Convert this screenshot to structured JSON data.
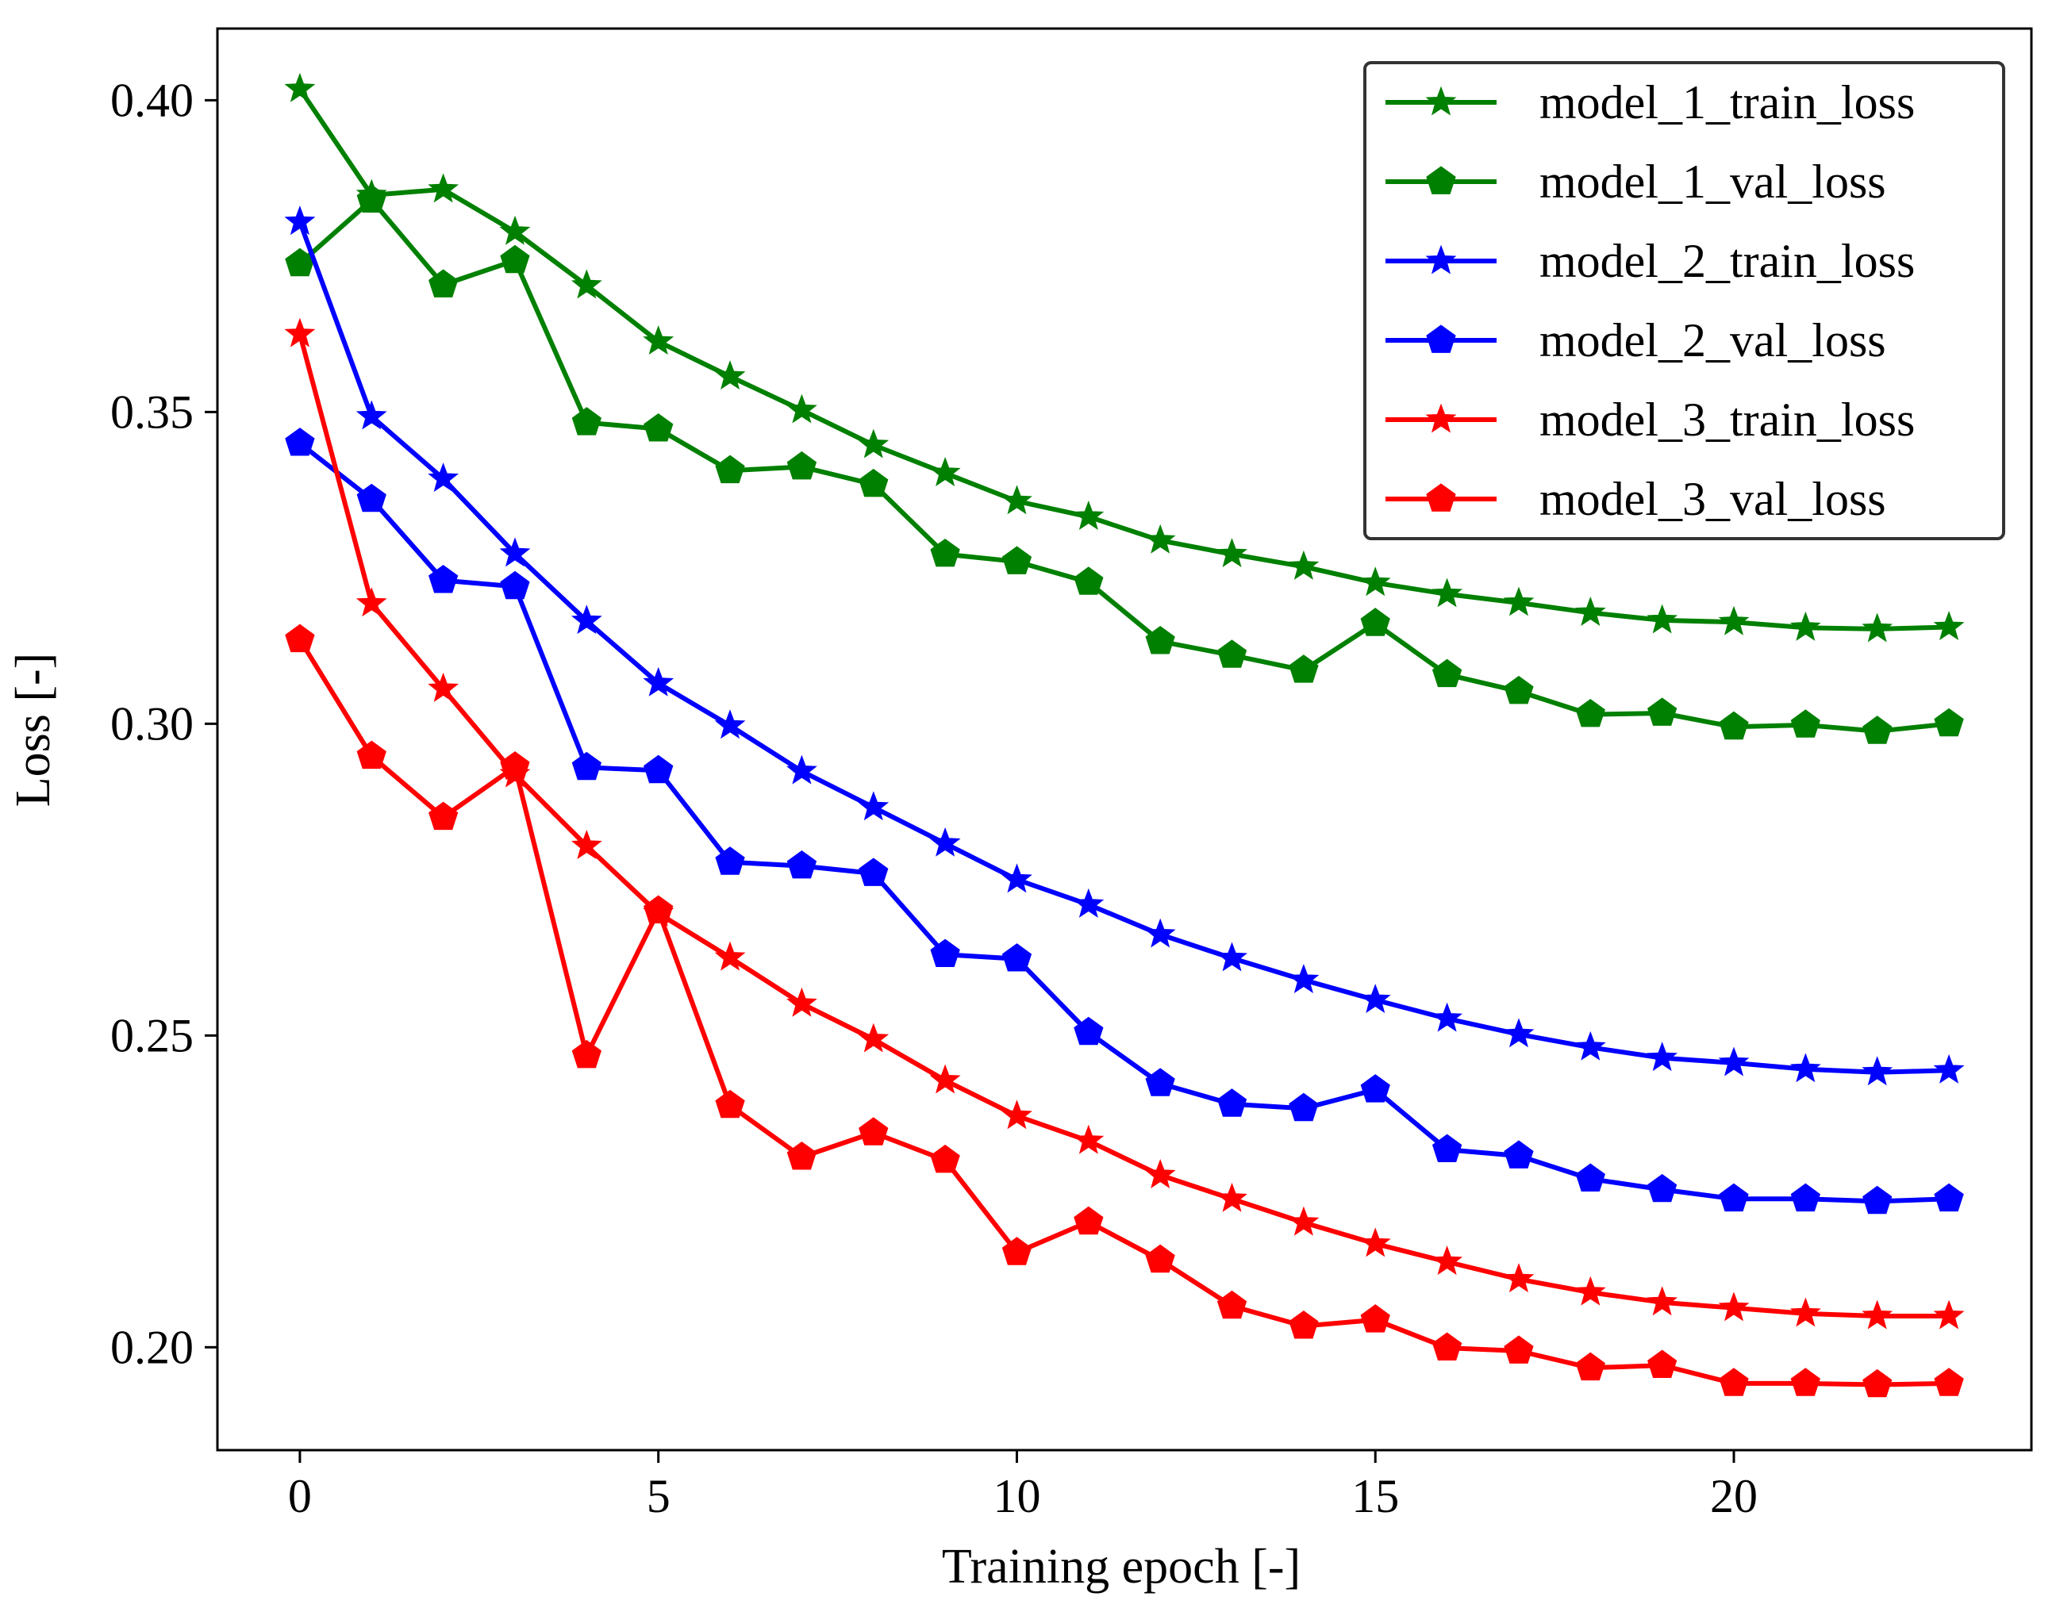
{
  "chart_data": {
    "type": "line",
    "title": "",
    "xlabel": "Training epoch [-]",
    "ylabel": "Loss [-]",
    "xlim": [
      -1.15,
      24.15
    ],
    "ylim": [
      0.1835,
      0.4115
    ],
    "xticks": [
      {
        "value": 0,
        "label": "0"
      },
      {
        "value": 5,
        "label": "5"
      },
      {
        "value": 10,
        "label": "10"
      },
      {
        "value": 15,
        "label": "15"
      },
      {
        "value": 20,
        "label": "20"
      }
    ],
    "yticks": [
      {
        "value": 0.2,
        "label": "0.20"
      },
      {
        "value": 0.25,
        "label": "0.25"
      },
      {
        "value": 0.3,
        "label": "0.30"
      },
      {
        "value": 0.35,
        "label": "0.35"
      },
      {
        "value": 0.4,
        "label": "0.40"
      }
    ],
    "grid": false,
    "legend_position": "top-right",
    "x": [
      0,
      1,
      2,
      3,
      4,
      5,
      6,
      7,
      8,
      9,
      10,
      11,
      12,
      13,
      14,
      15,
      16,
      17,
      18,
      19,
      20,
      21,
      22,
      23
    ],
    "series": [
      {
        "name": "model_1_train_loss",
        "color": "#008000",
        "marker": "star",
        "values": [
          0.4018,
          0.3848,
          0.3857,
          0.3789,
          0.3703,
          0.3613,
          0.3557,
          0.3503,
          0.3447,
          0.3402,
          0.3357,
          0.3332,
          0.3294,
          0.3272,
          0.3252,
          0.3226,
          0.3208,
          0.3194,
          0.3178,
          0.3166,
          0.3163,
          0.3154,
          0.3152,
          0.3155
        ]
      },
      {
        "name": "model_1_val_loss",
        "color": "#008000",
        "marker": "pentagon",
        "values": [
          0.3738,
          0.384,
          0.3704,
          0.3743,
          0.3483,
          0.3473,
          0.3406,
          0.3412,
          0.3384,
          0.3272,
          0.326,
          0.3227,
          0.3132,
          0.311,
          0.3086,
          0.3161,
          0.3079,
          0.3052,
          0.3015,
          0.3017,
          0.2995,
          0.2998,
          0.2988,
          0.3
        ]
      },
      {
        "name": "model_2_train_loss",
        "color": "#0000ff",
        "marker": "star",
        "values": [
          0.3805,
          0.3493,
          0.3393,
          0.3273,
          0.3165,
          0.3065,
          0.2997,
          0.2924,
          0.2866,
          0.2808,
          0.275,
          0.271,
          0.2662,
          0.2624,
          0.2589,
          0.2557,
          0.2527,
          0.2502,
          0.2481,
          0.2464,
          0.2456,
          0.2446,
          0.2441,
          0.2444
        ]
      },
      {
        "name": "model_2_val_loss",
        "color": "#0000ff",
        "marker": "pentagon",
        "values": [
          0.345,
          0.336,
          0.323,
          0.322,
          0.293,
          0.2925,
          0.2778,
          0.2772,
          0.276,
          0.263,
          0.2623,
          0.2505,
          0.2423,
          0.239,
          0.2383,
          0.2413,
          0.2317,
          0.2307,
          0.227,
          0.2253,
          0.2238,
          0.2238,
          0.2234,
          0.2238
        ]
      },
      {
        "name": "model_3_train_loss",
        "color": "#ff0000",
        "marker": "star",
        "values": [
          0.3625,
          0.3193,
          0.3056,
          0.2919,
          0.2804,
          0.2696,
          0.2625,
          0.2551,
          0.2494,
          0.2428,
          0.2371,
          0.2331,
          0.2276,
          0.2238,
          0.22,
          0.2166,
          0.2137,
          0.2109,
          0.2088,
          0.2072,
          0.2063,
          0.2054,
          0.205,
          0.205
        ]
      },
      {
        "name": "model_3_val_loss",
        "color": "#ff0000",
        "marker": "pentagon",
        "values": [
          0.3135,
          0.2948,
          0.285,
          0.2931,
          0.2468,
          0.27,
          0.2388,
          0.2305,
          0.2344,
          0.23,
          0.2152,
          0.2201,
          0.214,
          0.2066,
          0.2034,
          0.2044,
          0.1999,
          0.1994,
          0.1967,
          0.1971,
          0.1942,
          0.1942,
          0.194,
          0.1942
        ]
      }
    ]
  }
}
